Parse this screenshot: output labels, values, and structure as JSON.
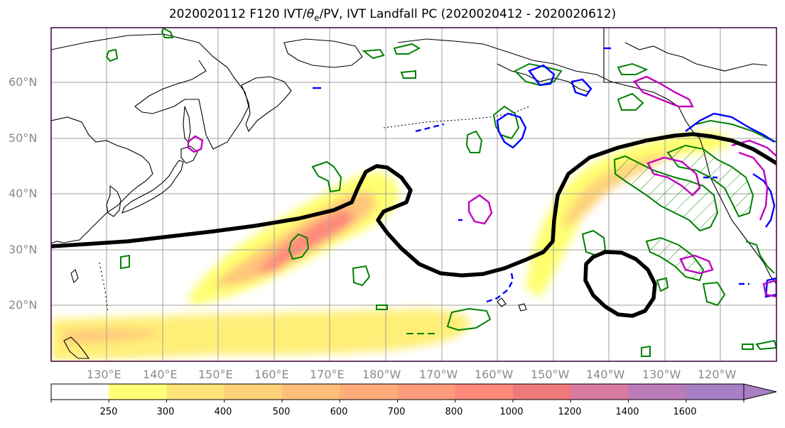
{
  "title": {
    "prefix": "2020020112 F120 IVT/",
    "theta": "θ",
    "theta_sub": "e",
    "suffix": "/PV, IVT Landfall PC (2020020412 - 2020020612)"
  },
  "lat_labels": [
    "60°N",
    "50°N",
    "40°N",
    "30°N",
    "20°N"
  ],
  "lon_labels": [
    "130°E",
    "140°E",
    "150°E",
    "160°E",
    "170°E",
    "180°W",
    "170°W",
    "160°W",
    "150°W",
    "140°W",
    "130°W",
    "120°W"
  ],
  "colorbar": {
    "ticks": [
      "250",
      "300",
      "400",
      "500",
      "600",
      "700",
      "800",
      "1000",
      "1200",
      "1400",
      "1600"
    ],
    "colors": [
      "#ffffff",
      "#ffff78",
      "#ffe47a",
      "#ffd07a",
      "#ffbd7a",
      "#ffac7a",
      "#ff9b7a",
      "#ff8a7a",
      "#f07a7a",
      "#d97aa0",
      "#bb7ab8",
      "#a87ec4"
    ]
  },
  "colors": {
    "grid": "#a0a0a0",
    "coast": "#000000",
    "theta_e": "#008000",
    "pv_blue": "#0000ff",
    "pv_magenta": "#c000c0",
    "jet": "#000000",
    "frame": "#3a003a"
  }
}
